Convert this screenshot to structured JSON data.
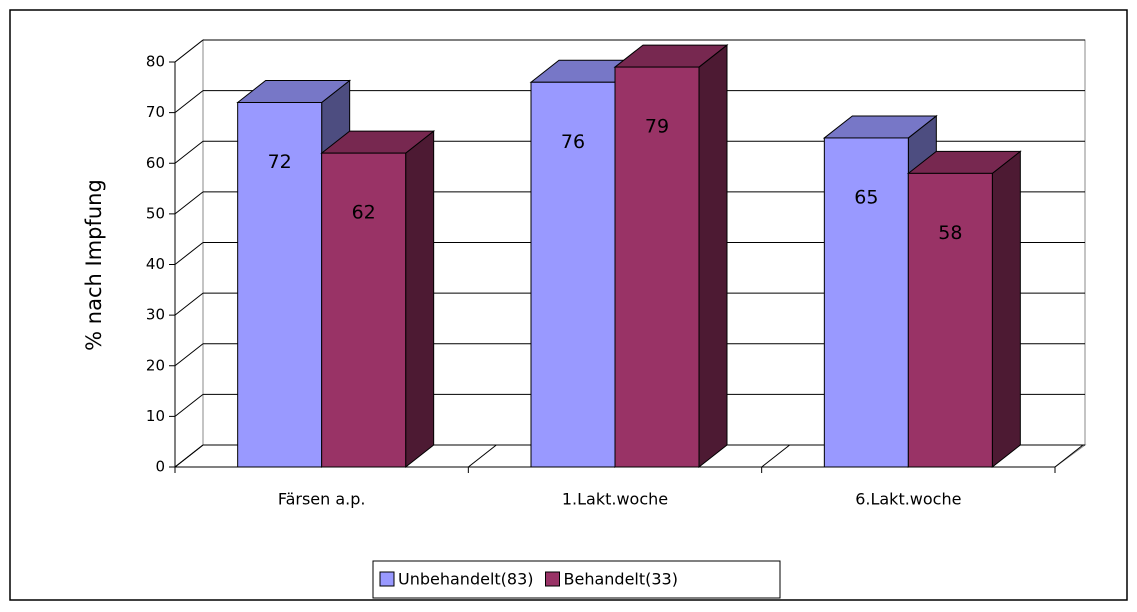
{
  "chart_data": {
    "type": "bar3d",
    "y_axis_label": "% nach Impfung",
    "categories": [
      "Färsen a.p.",
      "1.Lakt.woche",
      "6.Lakt.woche"
    ],
    "series": [
      {
        "name": "Unbehandelt(83)",
        "color": "#9999ff",
        "values": [
          72,
          76,
          65
        ]
      },
      {
        "name": "Behandelt(33)",
        "color": "#993366",
        "values": [
          62,
          79,
          58
        ]
      }
    ],
    "ylim": [
      0,
      80
    ],
    "yticks": [
      0,
      10,
      20,
      30,
      40,
      50,
      60,
      70,
      80
    ],
    "grid": true,
    "legend": "bottom"
  }
}
